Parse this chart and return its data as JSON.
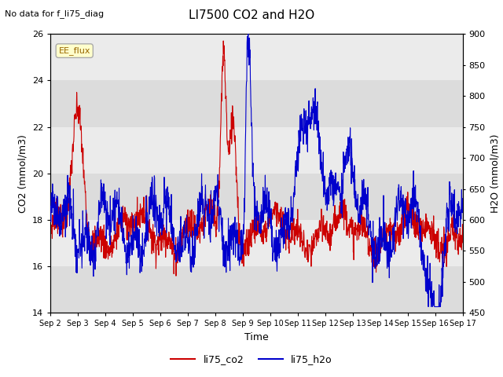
{
  "title": "LI7500 CO2 and H2O",
  "subtitle": "No data for f_li75_diag",
  "xlabel": "Time",
  "ylabel_left": "CO2 (mmol/m3)",
  "ylabel_right": "H2O (mmol/m3)",
  "ylim_left": [
    14,
    26
  ],
  "ylim_right": [
    450,
    900
  ],
  "yticks_left": [
    14,
    16,
    18,
    20,
    22,
    24,
    26
  ],
  "yticks_right": [
    450,
    500,
    550,
    600,
    650,
    700,
    750,
    800,
    850,
    900
  ],
  "legend_label1": "li75_co2",
  "legend_label2": "li75_h2o",
  "color_co2": "#cc0000",
  "color_h2o": "#0000cc",
  "legend_box_label": "EE_flux",
  "bg_color": "#ffffff",
  "band_color_dark": "#dcdcdc",
  "band_color_light": "#ebebeb",
  "xtick_labels": [
    "Sep 2",
    "Sep 3",
    "Sep 4",
    "Sep 5",
    "Sep 6",
    "Sep 7",
    "Sep 8",
    "Sep 9",
    "Sep 10",
    "Sep 11",
    "Sep 12",
    "Sep 13",
    "Sep 14",
    "Sep 15",
    "Sep 16",
    "Sep 17"
  ],
  "n_points": 1500,
  "figwidth": 6.4,
  "figheight": 4.8,
  "dpi": 100
}
